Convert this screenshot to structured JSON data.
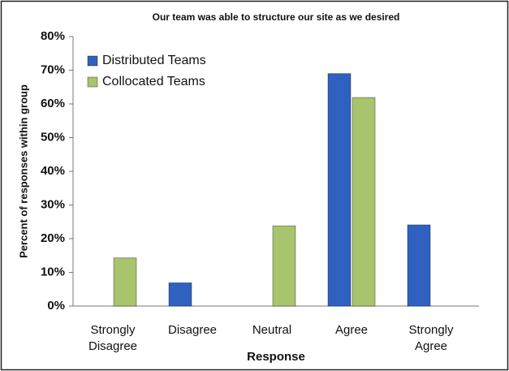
{
  "chart_data": {
    "type": "bar",
    "title": "Our team was able to structure our site as we desired",
    "xlabel": "Response",
    "ylabel": "Percent of responses within group",
    "categories": [
      "Strongly Disagree",
      "Disagree",
      "Neutral",
      "Agree",
      "Strongly Agree"
    ],
    "series": [
      {
        "name": "Distributed Teams",
        "color": "#2f62c0",
        "values": [
          0,
          6.9,
          0,
          69,
          24.1
        ]
      },
      {
        "name": "Collocated Teams",
        "color": "#a8c46c",
        "values": [
          14.3,
          0,
          23.8,
          61.9,
          0
        ]
      }
    ],
    "ylim": [
      0,
      80
    ],
    "yticks": [
      {
        "value": 0,
        "label": "0%"
      },
      {
        "value": 10,
        "label": "10%"
      },
      {
        "value": 20,
        "label": "20%"
      },
      {
        "value": 30,
        "label": "30%"
      },
      {
        "value": 40,
        "label": "40%"
      },
      {
        "value": 50,
        "label": "50%"
      },
      {
        "value": 60,
        "label": "60%"
      },
      {
        "value": 70,
        "label": "70%"
      },
      {
        "value": 80,
        "label": "80%"
      }
    ],
    "grid": false,
    "legend": "upper left"
  }
}
